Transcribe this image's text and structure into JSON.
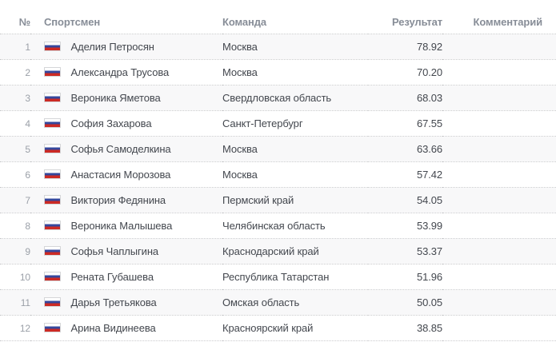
{
  "table": {
    "columns": {
      "num": "№",
      "athlete": "Спортсмен",
      "team": "Команда",
      "result": "Результат",
      "comment": "Комментарий"
    },
    "rows": [
      {
        "num": "1",
        "athlete": "Аделия Петросян",
        "team": "Москва",
        "result": "78.92",
        "comment": ""
      },
      {
        "num": "2",
        "athlete": "Александра Трусова",
        "team": "Москва",
        "result": "70.20",
        "comment": ""
      },
      {
        "num": "3",
        "athlete": "Вероника Яметова",
        "team": "Свердловская область",
        "result": "68.03",
        "comment": ""
      },
      {
        "num": "4",
        "athlete": "София Захарова",
        "team": "Санкт-Петербург",
        "result": "67.55",
        "comment": ""
      },
      {
        "num": "5",
        "athlete": "Софья Самоделкина",
        "team": "Москва",
        "result": "63.66",
        "comment": ""
      },
      {
        "num": "6",
        "athlete": "Анастасия Морозова",
        "team": "Москва",
        "result": "57.42",
        "comment": ""
      },
      {
        "num": "7",
        "athlete": "Виктория Федянина",
        "team": "Пермский край",
        "result": "54.05",
        "comment": ""
      },
      {
        "num": "8",
        "athlete": "Вероника Малышева",
        "team": "Челябинская область",
        "result": "53.99",
        "comment": ""
      },
      {
        "num": "9",
        "athlete": "Софья Чаплыгина",
        "team": "Краснодарский край",
        "result": "53.37",
        "comment": ""
      },
      {
        "num": "10",
        "athlete": "Рената Губашева",
        "team": "Республика Татарстан",
        "result": "51.96",
        "comment": ""
      },
      {
        "num": "11",
        "athlete": "Дарья Третьякова",
        "team": "Омская область",
        "result": "50.05",
        "comment": ""
      },
      {
        "num": "12",
        "athlete": "Арина Видинеева",
        "team": "Красноярский край",
        "result": "38.85",
        "comment": ""
      }
    ],
    "flag_icon": "russia-flag-icon"
  },
  "colors": {
    "flag-blue": "#35479c",
    "flag-red": "#cc2a24",
    "stripe": "#f8f8f9",
    "header-text": "#878d97",
    "body-text": "#43474e",
    "rank-text": "#9ba0a8",
    "dotted": "#c9cacc"
  }
}
